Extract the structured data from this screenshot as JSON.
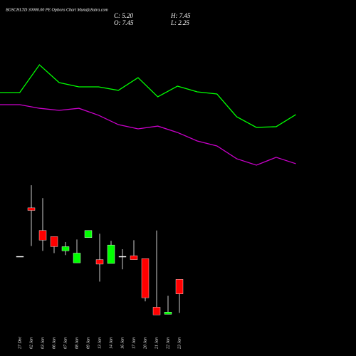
{
  "header": {
    "title": "BOSCHLTD 30000.00  PE Options  Chart MunafaSutra.com",
    "close": "C: 5.20",
    "open": "O: 7.45",
    "high": "H: 7.45",
    "low": "L: 2.25"
  },
  "chart_data": [
    {
      "type": "line",
      "ylim": [
        0,
        100
      ],
      "series": [
        {
          "color": "#00ff00",
          "values": [
            70.6,
            70.6,
            93.5,
            78.8,
            75.3,
            75.3,
            72.4,
            82.9,
            67.1,
            75.9,
            71.2,
            69.4,
            50.6,
            41.8,
            42.4,
            52.4
          ]
        },
        {
          "color": "#cc00cc",
          "values": [
            60.6,
            60.6,
            57.6,
            55.9,
            57.6,
            51.8,
            44.1,
            40.6,
            42.9,
            37.6,
            30.6,
            26.5,
            15.9,
            10.6,
            17.1,
            11.8
          ]
        }
      ]
    },
    {
      "type": "candlestick",
      "ylim": [
        0,
        23
      ],
      "up_color": "#00ff00",
      "down_color": "#ff0000",
      "categories": [
        "27 Dec",
        "02 Jan",
        "03 Jan",
        "06 Jan",
        "07 Jan",
        "08 Jan",
        "09 Jan",
        "13 Jan",
        "14 Jan",
        "16 Jan",
        "17 Jan",
        "20 Jan",
        "21 Jan",
        "22 Jan",
        "23 Jan"
      ],
      "open": [
        11,
        18.5,
        15.0,
        14.05,
        11.85,
        10,
        13.9,
        10.5,
        9.9,
        11,
        11.1,
        10.65,
        3.15,
        2.05,
        7.45
      ],
      "high": [
        11,
        22,
        20,
        14.05,
        13.2,
        13.6,
        15.0,
        14.5,
        13.4,
        12.1,
        13.5,
        10.65,
        15.0,
        4.9,
        7.45
      ],
      "low": [
        11,
        12.6,
        11.85,
        11.5,
        11.2,
        10,
        13.9,
        7.1,
        9.9,
        9,
        10.5,
        4.05,
        1.95,
        2.05,
        2.25
      ],
      "close": [
        11,
        18.1,
        13.5,
        12.5,
        12.5,
        11.5,
        15.0,
        9.8,
        12.75,
        11,
        10.5,
        4.6,
        1.95,
        2.4,
        5.2
      ]
    }
  ]
}
